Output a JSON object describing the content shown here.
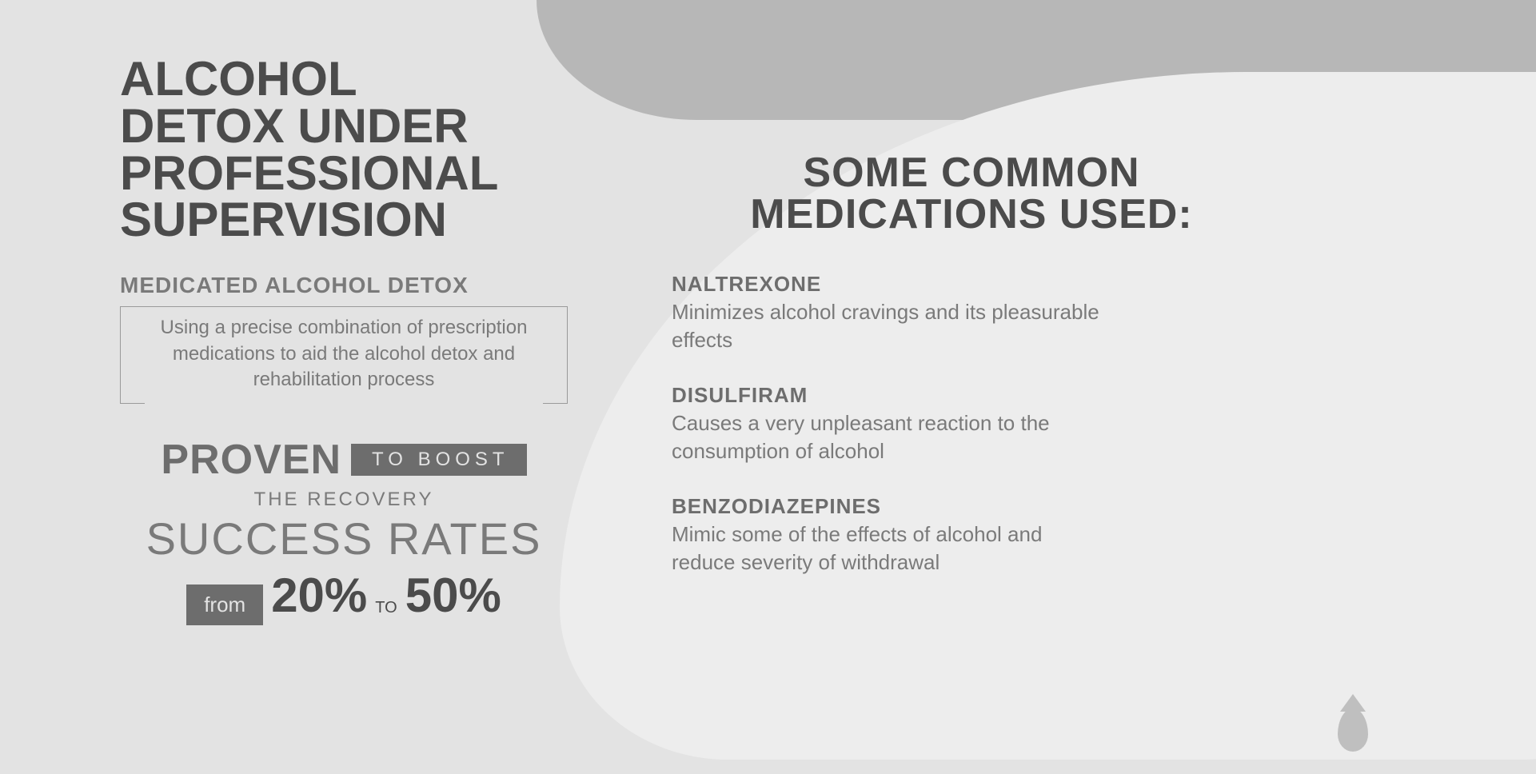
{
  "colors": {
    "page_bg": "#e3e3e3",
    "band_bg": "#b7b7b7",
    "blob_bg": "#ededed",
    "drop_color": "#bfbfbf",
    "heading_color": "#4b4b4b",
    "subtext_color": "#7a7a7a",
    "pill_bg": "#6d6d6d",
    "pill_text": "#e3e3e3"
  },
  "typography": {
    "font_family": "Century Gothic / Futura / Avant Garde",
    "main_title_pt": 60,
    "right_title_pt": 52,
    "body_pt": 26,
    "pct_pt": 60
  },
  "left": {
    "title_line1": "ALCOHOL",
    "title_line2": "DETOX UNDER",
    "title_line3": "PROFESSIONAL",
    "title_line4": "SUPERVISION",
    "sub_title": "MEDICATED ALCOHOL DETOX",
    "boxed_text": "Using a precise combination of prescription medications to aid the alcohol detox and rehabilitation process",
    "proven": "PROVEN",
    "to_boost": "TO  BOOST",
    "recovery_label": "THE RECOVERY",
    "success_rates": "SUCCESS RATES",
    "from": "from",
    "pct_low": "20%",
    "to": "TO",
    "pct_high": "50%"
  },
  "right": {
    "title_line1": "SOME COMMON",
    "title_line2": "MEDICATIONS USED:",
    "meds": [
      {
        "name": "NALTREXONE",
        "desc": "Minimizes alcohol cravings and its pleasurable effects"
      },
      {
        "name": "DISULFIRAM",
        "desc": "Causes a very unpleasant reaction to the consumption of alcohol"
      },
      {
        "name": "BENZODIAZEPINES",
        "desc": "Mimic some of the effects of alcohol and reduce severity of withdrawal"
      }
    ]
  }
}
